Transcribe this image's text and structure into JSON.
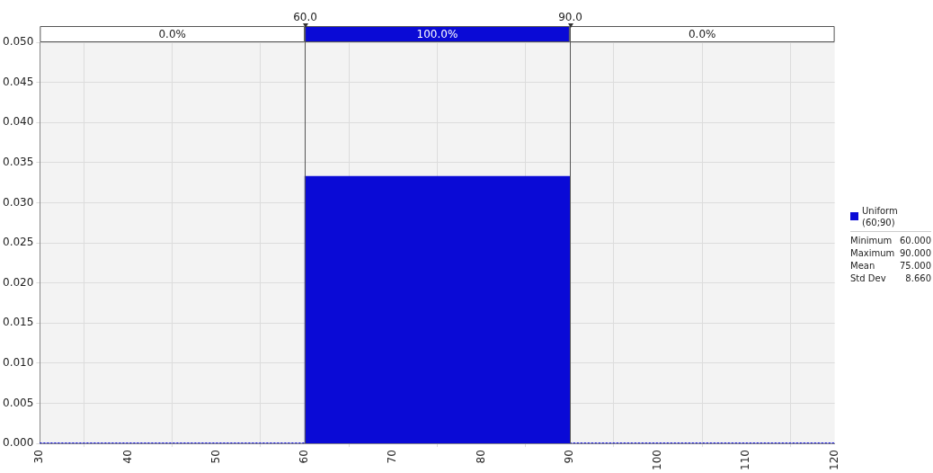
{
  "chart_data": {
    "type": "histogram",
    "bins": [
      30,
      60,
      90,
      120
    ],
    "series": [
      {
        "name": "Uniform (60;90)",
        "color": "#0a0ad6",
        "values": [
          0,
          0.0333,
          0
        ]
      }
    ],
    "xlim": [
      30,
      120
    ],
    "xticks": [
      30,
      40,
      50,
      60,
      70,
      80,
      90,
      100,
      110,
      120
    ],
    "ylim": [
      0,
      0.05
    ],
    "yticks": [
      {
        "value": 0,
        "label": "0.000"
      },
      {
        "value": 0.005,
        "label": "0.005"
      },
      {
        "value": 0.01,
        "label": "0.010"
      },
      {
        "value": 0.015,
        "label": "0.015"
      },
      {
        "value": 0.02,
        "label": "0.020"
      },
      {
        "value": 0.025,
        "label": "0.025"
      },
      {
        "value": 0.03,
        "label": "0.030"
      },
      {
        "value": 0.035,
        "label": "0.035"
      },
      {
        "value": 0.04,
        "label": "0.040"
      },
      {
        "value": 0.045,
        "label": "0.045"
      },
      {
        "value": 0.05,
        "label": "0.050"
      }
    ],
    "grid": true,
    "legend": "right",
    "ref_lines": [
      {
        "axis": "x",
        "value": 60,
        "label": "60.0"
      },
      {
        "axis": "x",
        "value": 90,
        "label": "90.0"
      }
    ],
    "bands": [
      {
        "axis": "x",
        "from": 30,
        "to": 60,
        "label": "0.0%"
      },
      {
        "axis": "x",
        "from": 60,
        "to": 90,
        "label": "100.0%"
      },
      {
        "axis": "x",
        "from": 90,
        "to": 120,
        "label": "0.0%"
      }
    ],
    "annotations": [
      "Minimum 60.000",
      "Maximum 90.000",
      "Mean 75.000",
      "Std Dev 8.660"
    ]
  }
}
